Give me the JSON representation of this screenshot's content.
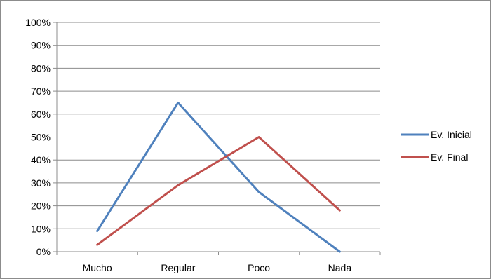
{
  "chart_data": {
    "type": "line",
    "title": "",
    "xlabel": "",
    "ylabel": "",
    "categories": [
      "Mucho",
      "Regular",
      "Poco",
      "Nada"
    ],
    "ylim": [
      0,
      1
    ],
    "yticks": [
      "0%",
      "10%",
      "20%",
      "30%",
      "40%",
      "50%",
      "60%",
      "70%",
      "80%",
      "90%",
      "100%"
    ],
    "grid": true,
    "legend_position": "right",
    "series": [
      {
        "name": "Ev. Inicial",
        "values": [
          0.09,
          0.65,
          0.26,
          0.0
        ],
        "color": "#4f81bd"
      },
      {
        "name": "Ev. Final",
        "values": [
          0.03,
          0.29,
          0.5,
          0.18
        ],
        "color": "#c0504d"
      }
    ]
  }
}
